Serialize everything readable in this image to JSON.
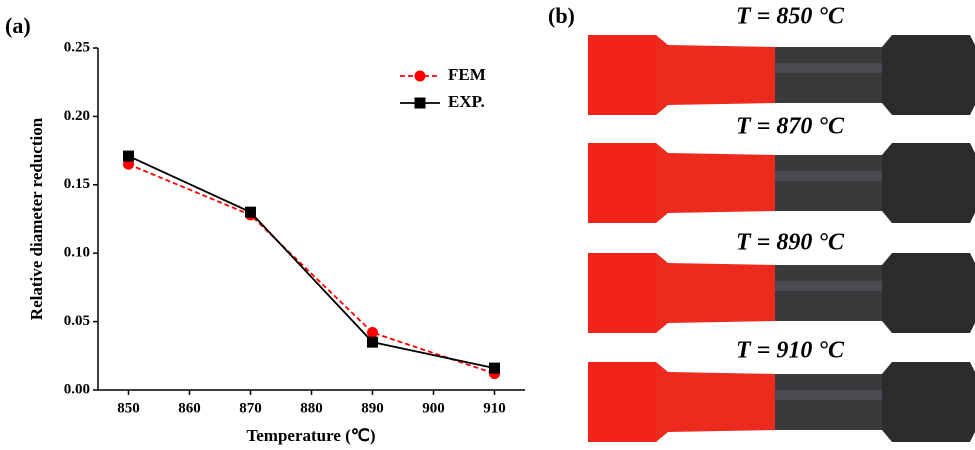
{
  "chart_data": {
    "type": "line",
    "panel_label": "(a)",
    "x_label": "Temperature (℃)",
    "y_label": "Relative diameter reduction",
    "x": [
      850,
      870,
      890,
      910
    ],
    "series": [
      {
        "name": "FEM",
        "color": "#ff0000",
        "marker": "circle",
        "dashed": true,
        "values": [
          0.165,
          0.128,
          0.042,
          0.012
        ]
      },
      {
        "name": "EXP.",
        "color": "#000000",
        "marker": "square",
        "dashed": false,
        "values": [
          0.171,
          0.13,
          0.035,
          0.016
        ]
      }
    ],
    "xlim": [
      845,
      915
    ],
    "ylim": [
      0,
      0.25
    ],
    "xticks": [
      850,
      860,
      870,
      880,
      890,
      900,
      910
    ],
    "yticks": [
      {
        "value": 0,
        "label": "0.00"
      },
      {
        "value": 0.05,
        "label": "0.05"
      },
      {
        "value": 0.1,
        "label": "0.10"
      },
      {
        "value": 0.15,
        "label": "0.15"
      },
      {
        "value": 0.2,
        "label": "0.20"
      },
      {
        "value": 0.25,
        "label": "0.25"
      }
    ],
    "legend": "upper right",
    "grid": false
  },
  "photo": {
    "panel_label": "(b)",
    "labels": [
      "T = 850 °C",
      "T = 870 °C",
      "T = 890 °C",
      "T = 910 °C"
    ]
  }
}
